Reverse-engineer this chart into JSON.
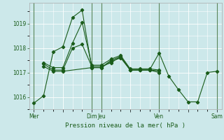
{
  "background_color": "#cce8ea",
  "grid_color": "#ffffff",
  "line_color": "#1a5c1a",
  "xlabel": "Pression niveau de la mer( hPa )",
  "xlabel_color": "#1a5c1a",
  "ylim": [
    1015.5,
    1019.85
  ],
  "yticks": [
    1016,
    1017,
    1018,
    1019
  ],
  "xtick_labels": [
    "Mer",
    "",
    "Dim",
    "Jeu",
    "",
    "Ven",
    "",
    "Sam"
  ],
  "xtick_positions": [
    0,
    3,
    6,
    7,
    10,
    13,
    16,
    19
  ],
  "series": [
    {
      "x": [
        0,
        1,
        2,
        3,
        4,
        5,
        6,
        7,
        8,
        9,
        10,
        11,
        12,
        13,
        14,
        15,
        16,
        17,
        18,
        19
      ],
      "y": [
        1015.75,
        1016.05,
        1017.85,
        1018.05,
        1019.25,
        1019.55,
        1017.2,
        1017.2,
        1017.5,
        1017.65,
        1017.1,
        1017.1,
        1017.1,
        1017.8,
        1016.85,
        1016.3,
        1015.8,
        1015.8,
        1017.0,
        1017.05
      ]
    },
    {
      "x": [
        1,
        2,
        3,
        4,
        5,
        6,
        7,
        8,
        9,
        10,
        11,
        12,
        13
      ],
      "y": [
        1017.4,
        1017.2,
        1017.2,
        1018.2,
        1019.05,
        1017.3,
        1017.3,
        1017.55,
        1017.7,
        1017.15,
        1017.15,
        1017.15,
        1017.1
      ]
    },
    {
      "x": [
        1,
        2,
        3,
        4,
        5,
        6,
        7,
        8,
        9,
        10,
        11,
        12,
        13
      ],
      "y": [
        1017.35,
        1017.1,
        1017.1,
        1018.0,
        1018.15,
        1017.25,
        1017.25,
        1017.4,
        1017.65,
        1017.1,
        1017.1,
        1017.1,
        1017.07
      ]
    },
    {
      "x": [
        1,
        2,
        3,
        6,
        7,
        8,
        9,
        10,
        11,
        12,
        13
      ],
      "y": [
        1017.25,
        1017.05,
        1017.05,
        1017.2,
        1017.2,
        1017.45,
        1017.6,
        1017.1,
        1017.1,
        1017.1,
        1017.0
      ]
    }
  ]
}
